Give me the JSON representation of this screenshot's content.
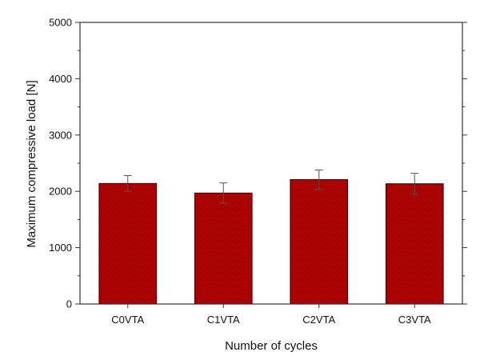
{
  "chart_data": {
    "type": "bar",
    "categories": [
      "C0VTA",
      "C1VTA",
      "C2VTA",
      "C3VTA"
    ],
    "values": [
      2140,
      1970,
      2210,
      2135
    ],
    "errors": [
      140,
      180,
      170,
      185
    ],
    "xlabel": "Number of cycles",
    "ylabel": "Maximum compressive load [N]",
    "ylim": [
      0,
      5000
    ],
    "yticks": [
      0,
      1000,
      2000,
      3000,
      4000,
      5000
    ],
    "grid": false,
    "bar_color": "#c00000",
    "bar_edge_color": "#3a0000",
    "axis_color": "#333333"
  }
}
